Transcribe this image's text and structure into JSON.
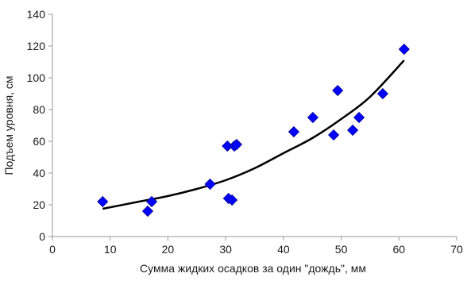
{
  "chart_data": {
    "type": "scatter",
    "title": "",
    "xlabel": "Сумма жидких осадков за один \"дождь\", мм",
    "ylabel": "Подъем уровня, см",
    "xlim": [
      0,
      70
    ],
    "ylim": [
      0,
      140
    ],
    "x_ticks": [
      "0",
      "10",
      "20",
      "30",
      "40",
      "50",
      "60",
      "70"
    ],
    "y_ticks": [
      "0",
      "20",
      "40",
      "60",
      "80",
      "100",
      "120",
      "140"
    ],
    "grid": false,
    "legend": "none",
    "series": [
      {
        "marker": "diamond",
        "color": "#0000ff",
        "points": [
          {
            "x": 8.7,
            "y": 22
          },
          {
            "x": 16.5,
            "y": 16
          },
          {
            "x": 17.2,
            "y": 22
          },
          {
            "x": 27.3,
            "y": 33
          },
          {
            "x": 30.3,
            "y": 57
          },
          {
            "x": 30.5,
            "y": 24
          },
          {
            "x": 31.1,
            "y": 23
          },
          {
            "x": 31.5,
            "y": 57
          },
          {
            "x": 31.9,
            "y": 58
          },
          {
            "x": 41.8,
            "y": 66
          },
          {
            "x": 45.1,
            "y": 75
          },
          {
            "x": 48.7,
            "y": 64
          },
          {
            "x": 49.4,
            "y": 92
          },
          {
            "x": 52.0,
            "y": 67
          },
          {
            "x": 53.1,
            "y": 75
          },
          {
            "x": 57.2,
            "y": 90
          },
          {
            "x": 60.9,
            "y": 118
          }
        ]
      }
    ],
    "trendline": {
      "type": "quadratic",
      "color": "#000000",
      "points": [
        {
          "x": 8.7,
          "y": 17.5
        },
        {
          "x": 15,
          "y": 22
        },
        {
          "x": 20,
          "y": 25.5
        },
        {
          "x": 25,
          "y": 30
        },
        {
          "x": 30,
          "y": 35.5
        },
        {
          "x": 35,
          "y": 43
        },
        {
          "x": 40,
          "y": 52.5
        },
        {
          "x": 45,
          "y": 62
        },
        {
          "x": 50,
          "y": 74
        },
        {
          "x": 55,
          "y": 88
        },
        {
          "x": 60.9,
          "y": 111
        }
      ]
    }
  }
}
